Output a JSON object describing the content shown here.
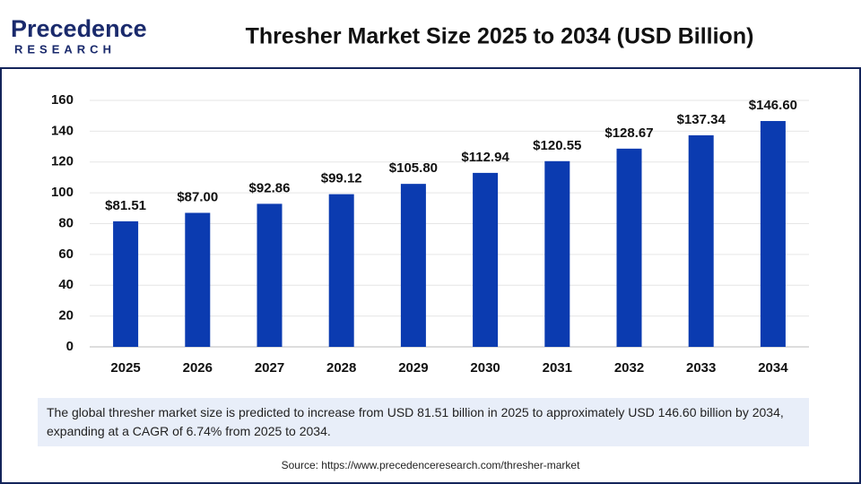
{
  "logo": {
    "name": "Precedence",
    "tagline": "RESEARCH"
  },
  "chart_data": {
    "type": "bar",
    "title": "Thresher Market Size 2025 to 2034 (USD Billion)",
    "categories": [
      "2025",
      "2026",
      "2027",
      "2028",
      "2029",
      "2030",
      "2031",
      "2032",
      "2033",
      "2034"
    ],
    "values": [
      81.51,
      87.0,
      92.86,
      99.12,
      105.8,
      112.94,
      120.55,
      128.67,
      137.34,
      146.6
    ],
    "value_labels": [
      "$81.51",
      "$87.00",
      "$92.86",
      "$99.12",
      "$105.80",
      "$112.94",
      "$120.55",
      "$128.67",
      "$137.34",
      "$146.60"
    ],
    "color": "#0b3bb0",
    "ylim": [
      0,
      160
    ],
    "yticks": [
      0,
      20,
      40,
      60,
      80,
      100,
      120,
      140,
      160
    ],
    "grid": true
  },
  "description": "The global thresher market size is predicted to increase from USD 81.51 billion in 2025 to approximately USD 146.60 billion by 2034, expanding at a CAGR of 6.74% from 2025 to 2034.",
  "source": "Source: https://www.precedenceresearch.com/thresher-market"
}
